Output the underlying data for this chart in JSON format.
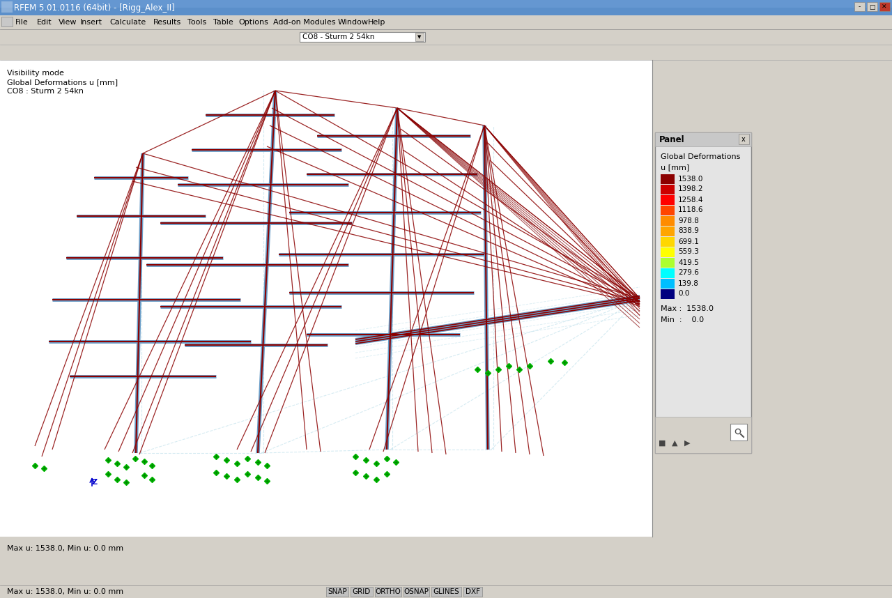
{
  "title": "RFEM 5.01.0116 (64bit) - [Rigg_Alex_II]",
  "menu_items": [
    "File",
    "Edit",
    "View",
    "Insert",
    "Calculate",
    "Results",
    "Tools",
    "Table",
    "Options",
    "Add-on Modules",
    "Window",
    "Help"
  ],
  "load_case": "CO8 - Sturm 2 54kn",
  "info_lines": [
    "Visibility mode",
    "Global Deformations u [mm]",
    "CO8 : Sturm 2 54kn"
  ],
  "panel_title": "Panel",
  "panel_subtitle": "Global Deformations",
  "panel_unit": "u [mm]",
  "legend_values": [
    "1538.0",
    "1398.2",
    "1258.4",
    "1118.6",
    "978.8",
    "838.9",
    "699.1",
    "559.3",
    "419.5",
    "279.6",
    "139.8",
    "0.0"
  ],
  "legend_colors": [
    "#8B0000",
    "#CC0000",
    "#FF0000",
    "#FF4500",
    "#FF8C00",
    "#FFA500",
    "#FFD700",
    "#FFFF00",
    "#ADFF2F",
    "#00FFFF",
    "#00BFFF",
    "#000080"
  ],
  "max_val": "1538.0",
  "min_val": "0.0",
  "status_items": [
    "SNAP",
    "GRID",
    "ORTHO",
    "OSNAP",
    "GLINES",
    "DXF"
  ],
  "bg_color": "#f0f0f0",
  "viewport_bg": "#ffffff",
  "bottom_text": "Max u: 1538.0, Min u: 0.0 mm",
  "axis_label": "Z",
  "panel_bg": "#e8e8e8",
  "titlebar_color": "#5b9bd5",
  "toolbar_bg": "#d4d0c8",
  "titlebar_gradient_start": "#4a86c8",
  "titlebar_gradient_end": "#7ab0e0"
}
